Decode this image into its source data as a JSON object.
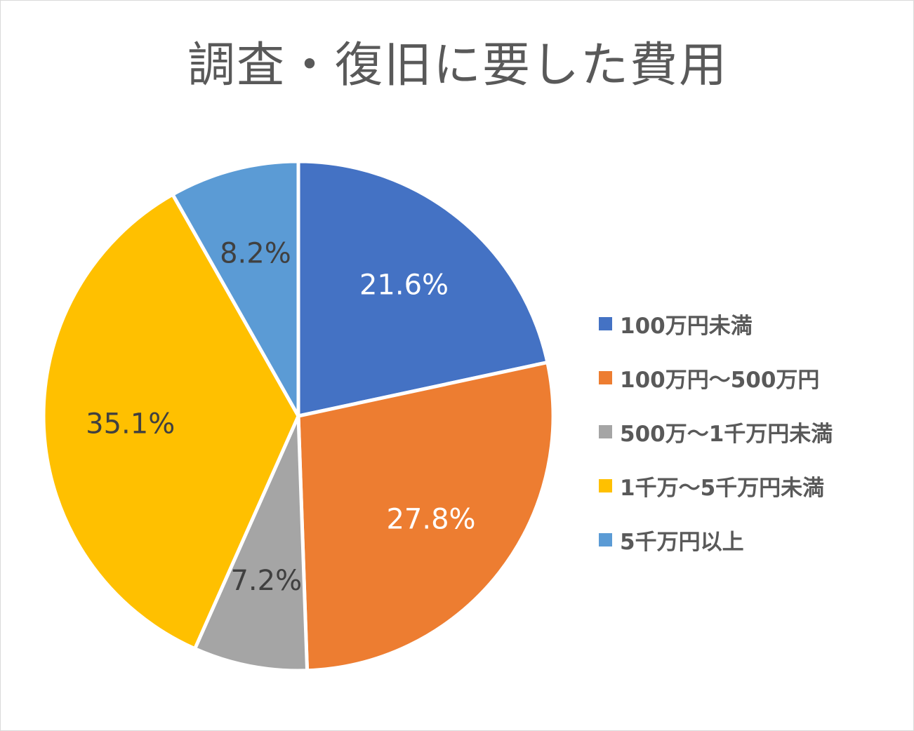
{
  "chart_data": {
    "type": "pie",
    "title": "調査・復旧に要した費用",
    "categories": [
      "100万円未満",
      "100万円〜500万円",
      "500万〜1千万円未満",
      "1千万〜5千万円未満",
      "5千万円以上"
    ],
    "values": [
      21.6,
      27.8,
      7.2,
      35.1,
      8.2
    ],
    "value_labels": [
      "21.6%",
      "27.8%",
      "7.2%",
      "35.1%",
      "8.2%"
    ],
    "colors": [
      "#4472C4",
      "#ED7D31",
      "#A5A5A5",
      "#FFC000",
      "#5B9BD5"
    ],
    "label_colors": [
      "#ffffff",
      "#ffffff",
      "#404040",
      "#404040",
      "#404040"
    ],
    "start_angle_deg": 0,
    "direction": "clockwise",
    "legend_position": "right"
  }
}
